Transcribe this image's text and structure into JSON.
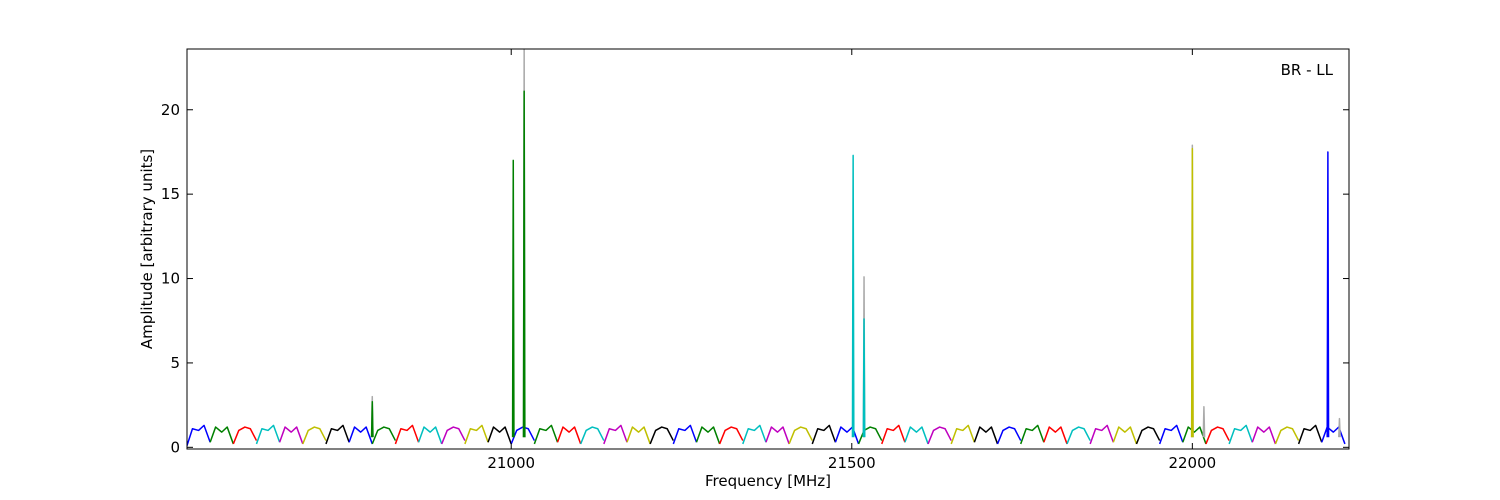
{
  "chart_data": {
    "type": "line",
    "xlabel": "Frequency [MHz]",
    "ylabel": "Amplitude [arbitrary units]",
    "annotation": "BR - LL",
    "xlim": [
      20524,
      22230
    ],
    "ylim": [
      -0.1,
      23.6
    ],
    "xticks": [
      21000,
      21500,
      22000
    ],
    "yticks": [
      0,
      5,
      10,
      15,
      20
    ],
    "series": [
      {
        "color": "#0000ff",
        "x": [
          20524,
          20532,
          20541,
          20549,
          20558
        ],
        "values": [
          0.1,
          1.1,
          1.0,
          1.3,
          0.3
        ]
      },
      {
        "color": "#008000",
        "x": [
          20558,
          20566,
          20575,
          20583,
          20592
        ],
        "values": [
          0.3,
          1.2,
          0.9,
          1.2,
          0.2
        ]
      },
      {
        "color": "#ff0000",
        "x": [
          20592,
          20600,
          20609,
          20617,
          20626
        ],
        "values": [
          0.2,
          1.0,
          1.2,
          1.1,
          0.4
        ]
      },
      {
        "color": "#00bfbf",
        "x": [
          20626,
          20634,
          20643,
          20651,
          20660
        ],
        "values": [
          0.2,
          1.1,
          1.0,
          1.3,
          0.3
        ]
      },
      {
        "color": "#bf00bf",
        "x": [
          20660,
          20668,
          20677,
          20685,
          20694
        ],
        "values": [
          0.3,
          1.2,
          0.9,
          1.2,
          0.2
        ]
      },
      {
        "color": "#bfbf00",
        "x": [
          20694,
          20702,
          20711,
          20719,
          20728
        ],
        "values": [
          0.2,
          1.0,
          1.2,
          1.1,
          0.4
        ]
      },
      {
        "color": "#000000",
        "x": [
          20728,
          20736,
          20745,
          20753,
          20762
        ],
        "values": [
          0.2,
          1.1,
          1.0,
          1.3,
          0.3
        ]
      },
      {
        "color": "#0000ff",
        "x": [
          20762,
          20770,
          20779,
          20787,
          20796
        ],
        "values": [
          0.3,
          1.2,
          0.9,
          1.2,
          0.2
        ]
      },
      {
        "color": "#008000",
        "x": [
          20796,
          20804,
          20813,
          20821,
          20830
        ],
        "values": [
          0.2,
          1.0,
          1.2,
          1.1,
          0.4
        ]
      },
      {
        "color": "#ff0000",
        "x": [
          20830,
          20838,
          20847,
          20855,
          20864
        ],
        "values": [
          0.2,
          1.1,
          1.0,
          1.3,
          0.3
        ]
      },
      {
        "color": "#00bfbf",
        "x": [
          20864,
          20872,
          20881,
          20889,
          20898
        ],
        "values": [
          0.3,
          1.2,
          0.9,
          1.2,
          0.2
        ]
      },
      {
        "color": "#bf00bf",
        "x": [
          20898,
          20906,
          20915,
          20923,
          20932
        ],
        "values": [
          0.2,
          1.0,
          1.2,
          1.1,
          0.4
        ]
      },
      {
        "color": "#bfbf00",
        "x": [
          20932,
          20940,
          20949,
          20957,
          20966
        ],
        "values": [
          0.2,
          1.1,
          1.0,
          1.3,
          0.3
        ]
      },
      {
        "color": "#000000",
        "x": [
          20966,
          20974,
          20983,
          20991,
          21000
        ],
        "values": [
          0.3,
          1.2,
          0.9,
          1.2,
          0.2
        ]
      },
      {
        "color": "#0000ff",
        "x": [
          21000,
          21008,
          21017,
          21025,
          21034
        ],
        "values": [
          0.2,
          1.0,
          1.2,
          1.1,
          0.4
        ]
      },
      {
        "color": "#008000",
        "x": [
          21034,
          21042,
          21051,
          21059,
          21068
        ],
        "values": [
          0.2,
          1.1,
          1.0,
          1.3,
          0.3
        ]
      },
      {
        "color": "#ff0000",
        "x": [
          21068,
          21076,
          21085,
          21093,
          21102
        ],
        "values": [
          0.3,
          1.2,
          0.9,
          1.2,
          0.2
        ]
      },
      {
        "color": "#00bfbf",
        "x": [
          21102,
          21110,
          21119,
          21127,
          21136
        ],
        "values": [
          0.2,
          1.0,
          1.2,
          1.1,
          0.4
        ]
      },
      {
        "color": "#bf00bf",
        "x": [
          21136,
          21144,
          21153,
          21161,
          21170
        ],
        "values": [
          0.2,
          1.1,
          1.0,
          1.3,
          0.3
        ]
      },
      {
        "color": "#bfbf00",
        "x": [
          21170,
          21178,
          21187,
          21195,
          21204
        ],
        "values": [
          0.3,
          1.2,
          0.9,
          1.2,
          0.2
        ]
      },
      {
        "color": "#000000",
        "x": [
          21204,
          21212,
          21221,
          21229,
          21238
        ],
        "values": [
          0.2,
          1.0,
          1.2,
          1.1,
          0.4
        ]
      },
      {
        "color": "#0000ff",
        "x": [
          21238,
          21246,
          21255,
          21263,
          21272
        ],
        "values": [
          0.2,
          1.1,
          1.0,
          1.3,
          0.3
        ]
      },
      {
        "color": "#008000",
        "x": [
          21272,
          21280,
          21289,
          21297,
          21306
        ],
        "values": [
          0.3,
          1.2,
          0.9,
          1.2,
          0.2
        ]
      },
      {
        "color": "#ff0000",
        "x": [
          21306,
          21314,
          21323,
          21331,
          21340
        ],
        "values": [
          0.2,
          1.0,
          1.2,
          1.1,
          0.4
        ]
      },
      {
        "color": "#00bfbf",
        "x": [
          21340,
          21348,
          21357,
          21365,
          21374
        ],
        "values": [
          0.2,
          1.1,
          1.0,
          1.3,
          0.3
        ]
      },
      {
        "color": "#bf00bf",
        "x": [
          21374,
          21382,
          21391,
          21399,
          21408
        ],
        "values": [
          0.3,
          1.2,
          0.9,
          1.2,
          0.2
        ]
      },
      {
        "color": "#bfbf00",
        "x": [
          21408,
          21416,
          21425,
          21433,
          21442
        ],
        "values": [
          0.2,
          1.0,
          1.2,
          1.1,
          0.4
        ]
      },
      {
        "color": "#000000",
        "x": [
          21442,
          21450,
          21459,
          21467,
          21476
        ],
        "values": [
          0.2,
          1.1,
          1.0,
          1.3,
          0.3
        ]
      },
      {
        "color": "#0000ff",
        "x": [
          21476,
          21484,
          21493,
          21501,
          21510
        ],
        "values": [
          0.3,
          1.2,
          0.9,
          1.2,
          0.2
        ]
      },
      {
        "color": "#008000",
        "x": [
          21510,
          21518,
          21527,
          21535,
          21544
        ],
        "values": [
          0.2,
          1.0,
          1.2,
          1.1,
          0.4
        ]
      },
      {
        "color": "#ff0000",
        "x": [
          21544,
          21552,
          21561,
          21569,
          21578
        ],
        "values": [
          0.2,
          1.1,
          1.0,
          1.3,
          0.3
        ]
      },
      {
        "color": "#00bfbf",
        "x": [
          21578,
          21586,
          21595,
          21603,
          21612
        ],
        "values": [
          0.3,
          1.2,
          0.9,
          1.2,
          0.2
        ]
      },
      {
        "color": "#bf00bf",
        "x": [
          21612,
          21620,
          21629,
          21637,
          21646
        ],
        "values": [
          0.2,
          1.0,
          1.2,
          1.1,
          0.4
        ]
      },
      {
        "color": "#bfbf00",
        "x": [
          21646,
          21654,
          21663,
          21671,
          21680
        ],
        "values": [
          0.2,
          1.1,
          1.0,
          1.3,
          0.3
        ]
      },
      {
        "color": "#000000",
        "x": [
          21680,
          21688,
          21697,
          21705,
          21714
        ],
        "values": [
          0.3,
          1.2,
          0.9,
          1.2,
          0.2
        ]
      },
      {
        "color": "#0000ff",
        "x": [
          21714,
          21722,
          21731,
          21739,
          21748
        ],
        "values": [
          0.2,
          1.0,
          1.2,
          1.1,
          0.4
        ]
      },
      {
        "color": "#008000",
        "x": [
          21748,
          21756,
          21765,
          21773,
          21782
        ],
        "values": [
          0.2,
          1.1,
          1.0,
          1.3,
          0.3
        ]
      },
      {
        "color": "#ff0000",
        "x": [
          21782,
          21790,
          21799,
          21807,
          21816
        ],
        "values": [
          0.3,
          1.2,
          0.9,
          1.2,
          0.2
        ]
      },
      {
        "color": "#00bfbf",
        "x": [
          21816,
          21824,
          21833,
          21841,
          21850
        ],
        "values": [
          0.2,
          1.0,
          1.2,
          1.1,
          0.4
        ]
      },
      {
        "color": "#bf00bf",
        "x": [
          21850,
          21858,
          21867,
          21875,
          21884
        ],
        "values": [
          0.2,
          1.1,
          1.0,
          1.3,
          0.3
        ]
      },
      {
        "color": "#bfbf00",
        "x": [
          21884,
          21892,
          21901,
          21909,
          21918
        ],
        "values": [
          0.3,
          1.2,
          0.9,
          1.2,
          0.2
        ]
      },
      {
        "color": "#000000",
        "x": [
          21918,
          21926,
          21935,
          21943,
          21952
        ],
        "values": [
          0.2,
          1.0,
          1.2,
          1.1,
          0.4
        ]
      },
      {
        "color": "#0000ff",
        "x": [
          21952,
          21960,
          21969,
          21977,
          21986
        ],
        "values": [
          0.2,
          1.1,
          1.0,
          1.3,
          0.3
        ]
      },
      {
        "color": "#008000",
        "x": [
          21986,
          21994,
          22003,
          22011,
          22020
        ],
        "values": [
          0.3,
          1.2,
          0.9,
          1.2,
          0.2
        ]
      },
      {
        "color": "#ff0000",
        "x": [
          22020,
          22028,
          22037,
          22045,
          22054
        ],
        "values": [
          0.2,
          1.0,
          1.2,
          1.1,
          0.4
        ]
      },
      {
        "color": "#00bfbf",
        "x": [
          22054,
          22062,
          22071,
          22079,
          22088
        ],
        "values": [
          0.2,
          1.1,
          1.0,
          1.3,
          0.3
        ]
      },
      {
        "color": "#bf00bf",
        "x": [
          22088,
          22096,
          22105,
          22113,
          22122
        ],
        "values": [
          0.3,
          1.2,
          0.9,
          1.2,
          0.2
        ]
      },
      {
        "color": "#bfbf00",
        "x": [
          22122,
          22130,
          22139,
          22147,
          22156
        ],
        "values": [
          0.2,
          1.0,
          1.2,
          1.1,
          0.4
        ]
      },
      {
        "color": "#000000",
        "x": [
          22156,
          22164,
          22173,
          22181,
          22190
        ],
        "values": [
          0.2,
          1.1,
          1.0,
          1.3,
          0.3
        ]
      },
      {
        "color": "#0000ff",
        "x": [
          22190,
          22198,
          22207,
          22215,
          22224
        ],
        "values": [
          0.3,
          1.2,
          0.9,
          1.2,
          0.2
        ]
      },
      {
        "color": "#aaaaaa",
        "x": [
          20795,
          20796,
          20797
        ],
        "values": [
          0.6,
          3.0,
          0.6
        ]
      },
      {
        "color": "#aaaaaa",
        "x": [
          21018,
          21019,
          21020
        ],
        "values": [
          0.6,
          23.6,
          0.6
        ]
      },
      {
        "color": "#aaaaaa",
        "x": [
          21517,
          21518,
          21519
        ],
        "values": [
          0.6,
          10.1,
          0.6
        ]
      },
      {
        "color": "#aaaaaa",
        "x": [
          21999,
          22000,
          22001
        ],
        "values": [
          0.6,
          17.9,
          0.6
        ]
      },
      {
        "color": "#aaaaaa",
        "x": [
          22016,
          22017,
          22018
        ],
        "values": [
          0.6,
          2.4,
          0.6
        ]
      },
      {
        "color": "#aaaaaa",
        "x": [
          22215,
          22216,
          22217
        ],
        "values": [
          0.6,
          1.7,
          0.6
        ]
      },
      {
        "color": "#008000",
        "x": [
          20795,
          20796,
          20797
        ],
        "values": [
          0.6,
          2.7,
          0.6
        ]
      },
      {
        "color": "#008000",
        "x": [
          21002,
          21003,
          21004
        ],
        "values": [
          0.6,
          17.0,
          0.6
        ]
      },
      {
        "color": "#008000",
        "x": [
          21018,
          21019,
          21020
        ],
        "values": [
          0.6,
          21.1,
          0.6
        ]
      },
      {
        "color": "#00bfbf",
        "x": [
          21501,
          21502,
          21503
        ],
        "values": [
          0.6,
          17.3,
          0.6
        ]
      },
      {
        "color": "#00bfbf",
        "x": [
          21517,
          21518,
          21519
        ],
        "values": [
          0.6,
          7.6,
          0.6
        ]
      },
      {
        "color": "#bfbf00",
        "x": [
          21999,
          22000,
          22001
        ],
        "values": [
          0.6,
          17.7,
          0.6
        ]
      },
      {
        "color": "#0000ff",
        "x": [
          22198,
          22199,
          22200
        ],
        "values": [
          0.6,
          17.5,
          0.6
        ]
      }
    ]
  }
}
